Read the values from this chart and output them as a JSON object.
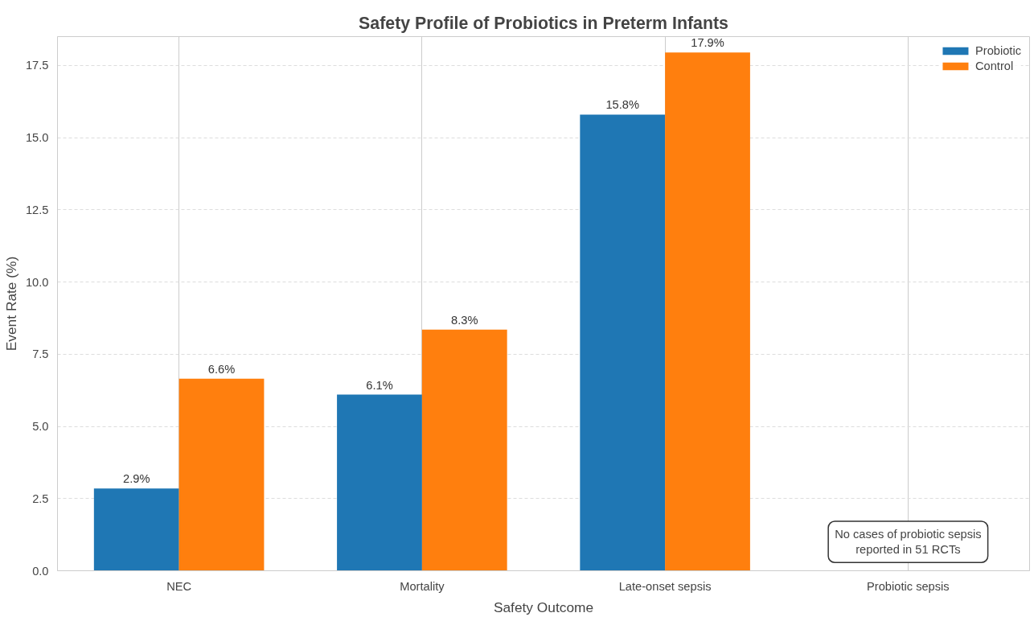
{
  "chart_data": {
    "type": "bar",
    "title": "Safety Profile of Probiotics in Preterm Infants",
    "xlabel": "Safety Outcome",
    "ylabel": "Event Rate (%)",
    "categories": [
      "NEC",
      "Mortality",
      "Late-onset sepsis",
      "Probiotic sepsis"
    ],
    "series": [
      {
        "name": "Probiotic",
        "color": "#1f77b4",
        "values": [
          2.85,
          6.1,
          15.8,
          0
        ],
        "value_labels": [
          "2.9%",
          "6.1%",
          "15.8%",
          null
        ]
      },
      {
        "name": "Control",
        "color": "#ff7f0e",
        "values": [
          6.65,
          8.35,
          17.95,
          0
        ],
        "value_labels": [
          "6.6%",
          "8.3%",
          "17.9%",
          null
        ]
      }
    ],
    "ylim": [
      0,
      18.5
    ],
    "yticks": [
      {
        "value": 0,
        "label": "0.0"
      },
      2.5,
      {
        "value": 5,
        "label": "5.0"
      },
      7.5,
      {
        "value": 10,
        "label": "10.0"
      },
      12.5,
      {
        "value": 15,
        "label": "15.0"
      },
      17.5
    ],
    "grid": true,
    "legend": "top right",
    "annotations": [
      "No cases of probiotic sepsis\nreported in 51 RCTs"
    ]
  }
}
